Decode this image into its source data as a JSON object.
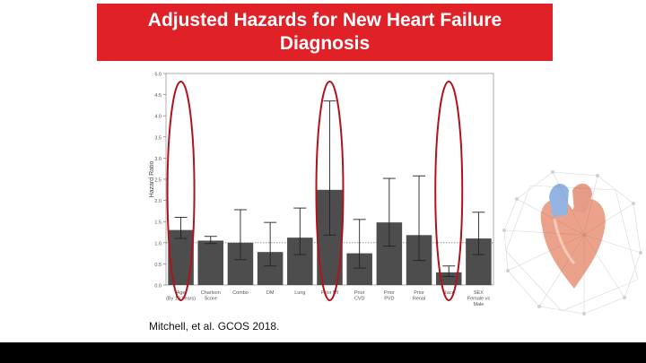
{
  "title_lines": [
    "Adjusted Hazards for New Heart Failure",
    "Diagnosis"
  ],
  "citation": "Mitchell, et al. GCOS 2018.",
  "colors": {
    "title_bg": "#e02128",
    "title_text": "#ffffff",
    "bar": "#4d4d4d",
    "circle": "#b2121c",
    "bottom_bar": "#000000"
  },
  "chart_data": {
    "type": "bar",
    "ylabel": "Hazard Ratio",
    "xlabel": "",
    "ylim": [
      0,
      5.0
    ],
    "yticks": [
      "0.0",
      "0.5",
      "1.0",
      "1.5",
      "2.0",
      "2.5",
      "3.0",
      "3.5",
      "4.0",
      "4.5",
      "5.0"
    ],
    "reference_line": 1.0,
    "categories": [
      [
        "Age",
        "(By 10 Years)"
      ],
      [
        "Charlson",
        "Score"
      ],
      [
        "Combo"
      ],
      [
        "DM"
      ],
      [
        "Lung"
      ],
      [
        "Prior MI"
      ],
      [
        "Prior",
        "CVD"
      ],
      [
        "Prior",
        "PVD"
      ],
      [
        "Prior",
        "Renal"
      ],
      [
        "Race"
      ],
      [
        "SEX",
        "Female vs",
        "Male"
      ]
    ],
    "values": [
      1.3,
      1.05,
      1.0,
      0.78,
      1.12,
      2.25,
      0.75,
      1.48,
      1.18,
      0.3,
      1.1
    ],
    "error_low": [
      1.1,
      0.98,
      0.6,
      0.45,
      0.72,
      1.18,
      0.4,
      0.92,
      0.58,
      0.2,
      0.72
    ],
    "error_high": [
      1.6,
      1.15,
      1.78,
      1.48,
      1.82,
      4.35,
      1.55,
      2.52,
      2.58,
      0.45,
      1.72
    ],
    "highlighted_categories": [
      "Age",
      "Prior MI",
      "Race"
    ],
    "grid": false
  }
}
